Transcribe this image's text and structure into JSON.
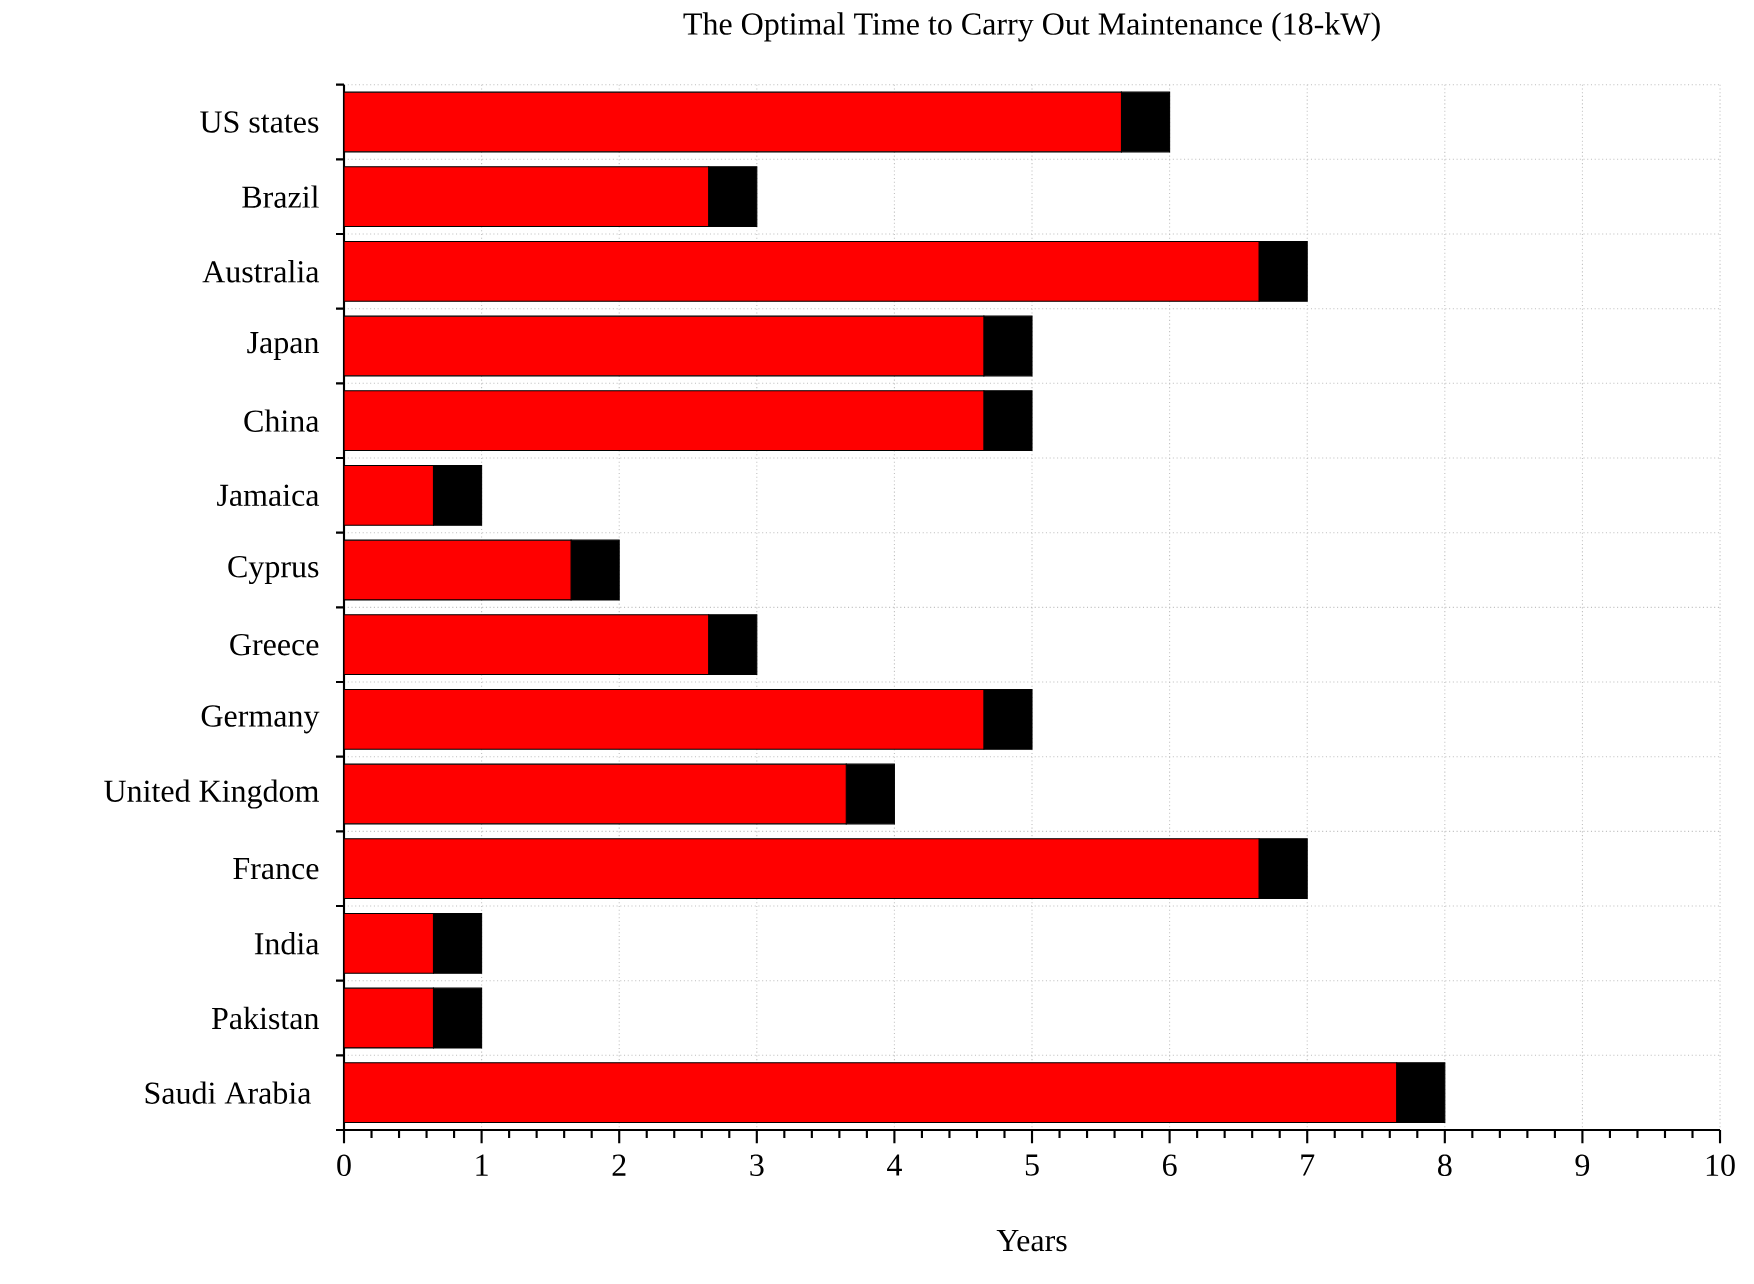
{
  "chart_data": {
    "type": "bar",
    "orientation": "horizontal",
    "stacked": true,
    "title": "The Optimal Time to Carry Out Maintenance (18-kW)",
    "xlabel": "Years",
    "categories": [
      "US states",
      "Brazil",
      "Australia",
      "Japan",
      "China",
      "Jamaica",
      "Cyprus",
      "Greece",
      "Germany",
      "United Kingdom",
      "France",
      "India",
      "Pakistan",
      "Saudi Arabia "
    ],
    "series": [
      {
        "color": "#ff0000",
        "values": [
          5.65,
          2.65,
          6.65,
          4.65,
          4.65,
          0.65,
          1.65,
          2.65,
          4.65,
          3.65,
          6.65,
          0.65,
          0.65,
          7.65
        ]
      },
      {
        "color": "#000000",
        "values": [
          0.35,
          0.35,
          0.35,
          0.35,
          0.35,
          0.35,
          0.35,
          0.35,
          0.35,
          0.35,
          0.35,
          0.35,
          0.35,
          0.35
        ]
      }
    ],
    "xlim": [
      0,
      10
    ],
    "xticks": [
      0,
      1,
      2,
      3,
      4,
      5,
      6,
      7,
      8,
      9,
      10
    ],
    "grid": true
  }
}
